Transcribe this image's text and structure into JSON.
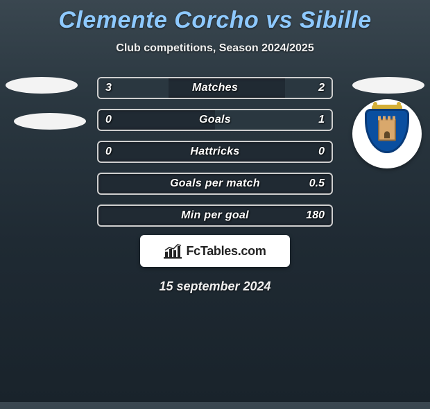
{
  "title": "Clemente Corcho vs Sibille",
  "title_color": "#8ec9ff",
  "title_fontsize": 34,
  "subtitle": "Club competitions, Season 2024/2025",
  "subtitle_fontsize": 16,
  "background_gradient": [
    "#3a4750",
    "#2a3740",
    "#1f2a33",
    "#19232b"
  ],
  "left_player": {
    "badge1_color": "#f3f3f3",
    "badge2_color": "#f3f3f3"
  },
  "right_player": {
    "crest": {
      "bg": "#ffffff",
      "shield_color": "#0a4fa0",
      "shield_border": "#083a78",
      "crown_color": "#d4af37",
      "tower_color": "#d9a86c",
      "tower_border": "#8a6a42",
      "door_color": "#604828"
    }
  },
  "bar_track_bg": "#202a33",
  "bar_border": "#cfcfcf",
  "bar_value_color": "#ffffff",
  "left_fill_color": "#2a3740",
  "right_fill_color": "#2a3740",
  "bars": [
    {
      "label": "Matches",
      "left": "3",
      "right": "2",
      "left_pct": 60,
      "right_pct": 40
    },
    {
      "label": "Goals",
      "left": "0",
      "right": "1",
      "left_pct": 0,
      "right_pct": 100
    },
    {
      "label": "Hattricks",
      "left": "0",
      "right": "0",
      "left_pct": 0,
      "right_pct": 0
    },
    {
      "label": "Goals per match",
      "left": "",
      "right": "0.5",
      "left_pct": 0,
      "right_pct": 0
    },
    {
      "label": "Min per goal",
      "left": "",
      "right": "180",
      "left_pct": 0,
      "right_pct": 0
    }
  ],
  "logo": {
    "text": "FcTables.com",
    "icon_color": "#222222"
  },
  "date": "15 september 2024",
  "date_fontsize": 18
}
